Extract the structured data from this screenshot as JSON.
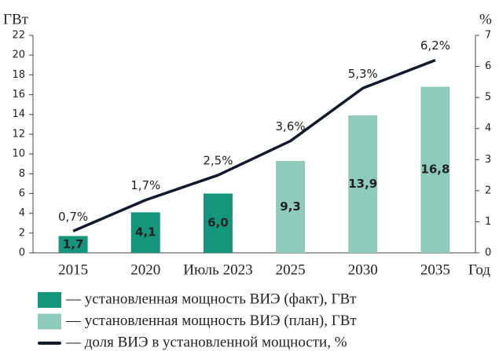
{
  "chart_data": {
    "type": "bar_line",
    "ylabel": "ГВт",
    "y2label": "%",
    "xlabel": "Год",
    "categories": [
      "2015",
      "2020",
      "Июль 2023",
      "2025",
      "2030",
      "2035"
    ],
    "series": [
      {
        "name": "— установленная мощность ВИЭ (факт), ГВт",
        "color": "#13967b",
        "type": "bar",
        "values": [
          1.7,
          4.1,
          6.0,
          null,
          null,
          null
        ],
        "value_labels": [
          "1,7",
          "4,1",
          "6,0",
          null,
          null,
          null
        ]
      },
      {
        "name": "— установленная мощность ВИЭ (план), ГВт",
        "color": "#8ecbbc",
        "type": "bar",
        "values": [
          null,
          null,
          null,
          9.3,
          13.9,
          16.8
        ],
        "value_labels": [
          null,
          null,
          null,
          "9,3",
          "13,9",
          "16,8"
        ]
      },
      {
        "name": "— доля ВИЭ в установленной мощности, %",
        "color": "#121a2e",
        "type": "line",
        "axis": "y2",
        "values": [
          0.7,
          1.7,
          2.5,
          3.6,
          5.3,
          6.2
        ],
        "value_labels": [
          "0,7%",
          "1,7%",
          "2,5%",
          "3,6%",
          "5,3%",
          "6,2%"
        ]
      }
    ],
    "ylim": [
      0,
      22
    ],
    "yticks": [
      0,
      2,
      4,
      6,
      8,
      10,
      12,
      14,
      16,
      18,
      20,
      22
    ],
    "y2lim": [
      0,
      7
    ],
    "y2ticks": [
      0,
      1,
      2,
      3,
      4,
      5,
      6,
      7
    ]
  }
}
